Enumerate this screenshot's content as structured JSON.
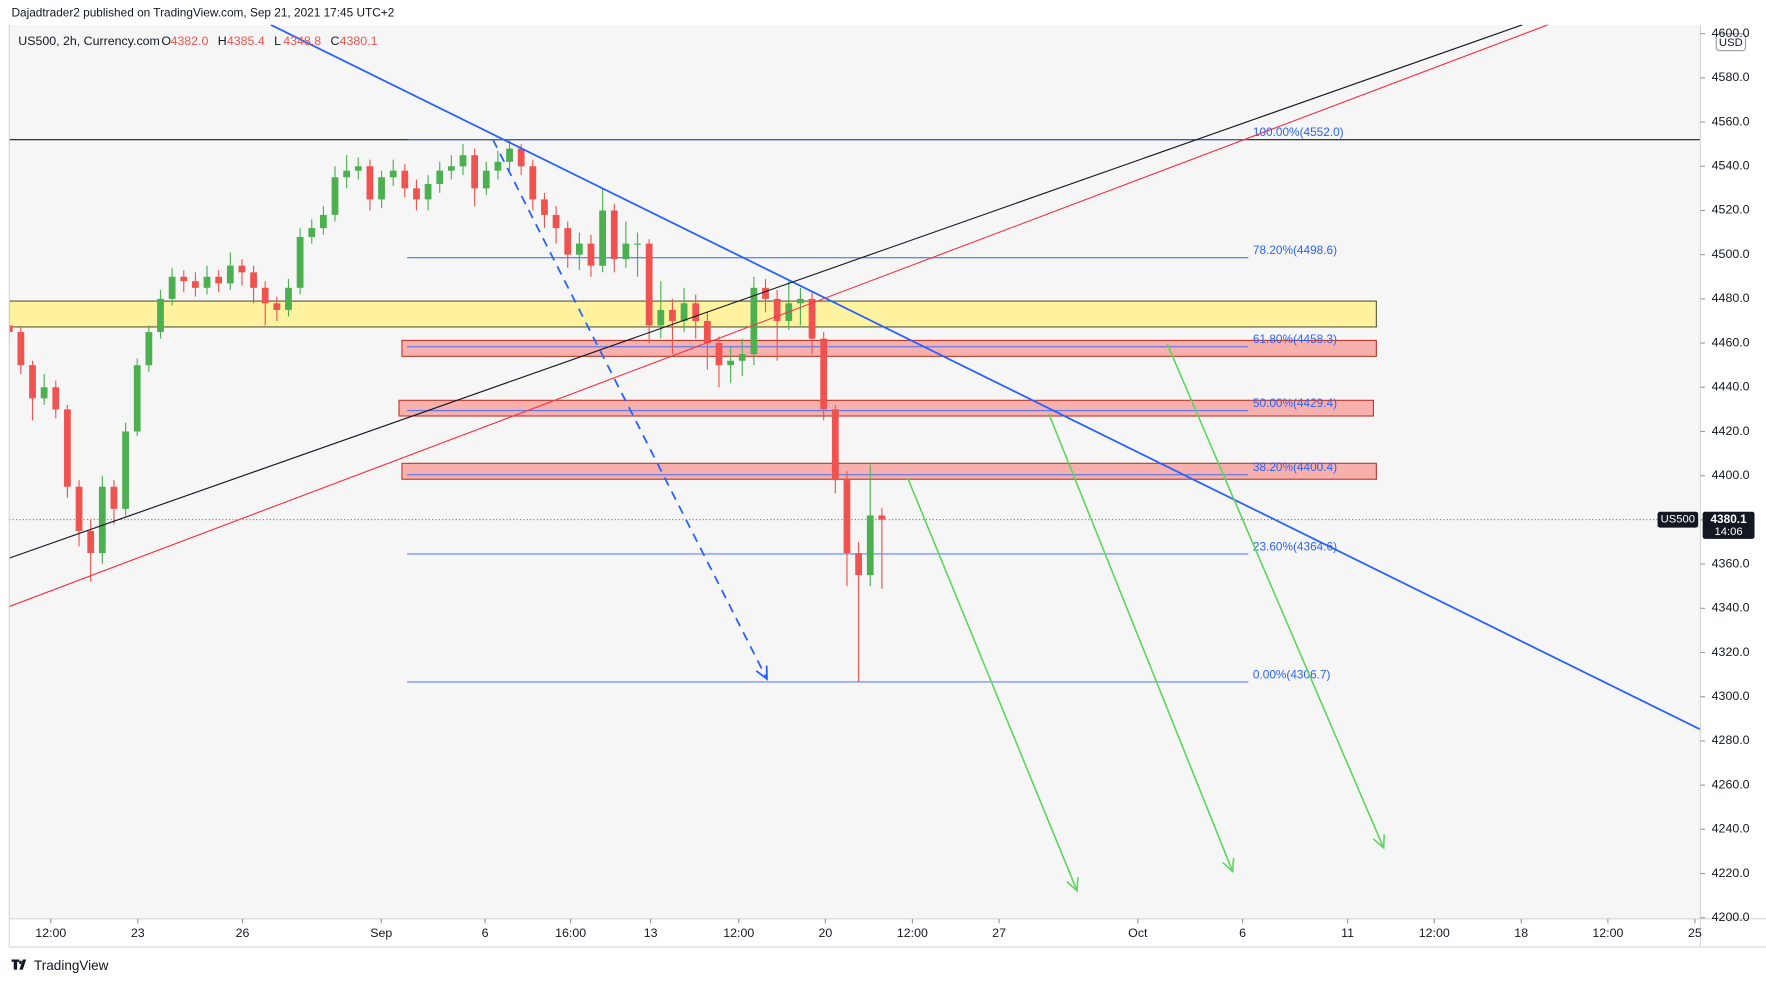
{
  "header": "Dajadtrader2 published on TradingView.com, Sep 21, 2021 17:45 UTC+2",
  "legend": {
    "symbol": "US500, 2h, Currency.com",
    "fields": [
      {
        "key": "O",
        "value": "4382.0"
      },
      {
        "key": "H",
        "value": "4385.4"
      },
      {
        "key": "L",
        "value": "4348.8"
      },
      {
        "key": "C",
        "value": "4380.1"
      }
    ]
  },
  "footer": "TradingView",
  "chart_data": {
    "type": "candlestick",
    "up_color": "#4caf50",
    "down_color": "#ef5350",
    "xlim": [
      0,
      581.4
    ],
    "ylim": [
      4200,
      4604
    ],
    "currency": "USD",
    "x": [
      0,
      4,
      8,
      12,
      16,
      20,
      24,
      28,
      32,
      36,
      40,
      44,
      48,
      52,
      56,
      60,
      64,
      68,
      72,
      76,
      80,
      84,
      88,
      92,
      96,
      100,
      104,
      108,
      112,
      116,
      120,
      124,
      128,
      132,
      136,
      140,
      144,
      148,
      152,
      156,
      160,
      164,
      168,
      172,
      176,
      180,
      184,
      188,
      192,
      196,
      200,
      204,
      208,
      212,
      216,
      220,
      224,
      228,
      232,
      236,
      240,
      244,
      248,
      252,
      256,
      260,
      264,
      268,
      272,
      276,
      280,
      284,
      288,
      292,
      296,
      300
    ],
    "open": [
      4468,
      4465,
      4450,
      4435,
      4440,
      4430,
      4395,
      4375,
      4365,
      4395,
      4385,
      4420,
      4450,
      4465,
      4480,
      4490,
      4488,
      4485,
      4490,
      4487,
      4495,
      4492,
      4485,
      4478,
      4475,
      4485,
      4508,
      4512,
      4518,
      4535,
      4538,
      4540,
      4525,
      4535,
      4538,
      4530,
      4525,
      4532,
      4538,
      4540,
      4545,
      4530,
      4538,
      4542,
      4548,
      4540,
      4525,
      4518,
      4512,
      4500,
      4505,
      4495,
      4520,
      4498,
      4505,
      4505,
      4468,
      4475,
      4470,
      4478,
      4470,
      4460,
      4450,
      4452,
      4455,
      4485,
      4480,
      4470,
      4478,
      4480,
      4462,
      4430,
      4398,
      4365,
      4355,
      4382
    ],
    "high": [
      4470,
      4467,
      4452,
      4446,
      4443,
      4432,
      4398,
      4380,
      4400,
      4398,
      4424,
      4453,
      4468,
      4484,
      4494,
      4493,
      4492,
      4495,
      4493,
      4501,
      4498,
      4495,
      4488,
      4481,
      4489,
      4512,
      4516,
      4522,
      4540,
      4545,
      4544,
      4543,
      4538,
      4543,
      4541,
      4534,
      4536,
      4542,
      4545,
      4550,
      4548,
      4542,
      4547,
      4552,
      4550,
      4543,
      4528,
      4522,
      4515,
      4510,
      4509,
      4530,
      4523,
      4515,
      4510,
      4507,
      4488,
      4480,
      4485,
      4482,
      4474,
      4463,
      4458,
      4462,
      4490,
      4489,
      4484,
      4488,
      4485,
      4483,
      4465,
      4432,
      4402,
      4370,
      4405,
      4385.4
    ],
    "low": [
      4460,
      4446,
      4425,
      4432,
      4426,
      4390,
      4368,
      4352,
      4360,
      4378,
      4382,
      4418,
      4447,
      4462,
      4477,
      4483,
      4481,
      4482,
      4483,
      4484,
      4486,
      4478,
      4468,
      4470,
      4472,
      4482,
      4505,
      4509,
      4515,
      4530,
      4534,
      4520,
      4521,
      4531,
      4526,
      4520,
      4520,
      4528,
      4534,
      4536,
      4522,
      4527,
      4534,
      4538,
      4536,
      4520,
      4512,
      4505,
      4494,
      4493,
      4490,
      4492,
      4492,
      4494,
      4490,
      4460,
      4462,
      4455,
      4465,
      4462,
      4448,
      4440,
      4442,
      4445,
      4450,
      4474,
      4452,
      4466,
      4468,
      4455,
      4425,
      4392,
      4350,
      4306.7,
      4350,
      4348.8
    ],
    "close": [
      4465,
      4450,
      4435,
      4440,
      4430,
      4395,
      4375,
      4365,
      4395,
      4385,
      4420,
      4450,
      4465,
      4480,
      4490,
      4488,
      4485,
      4490,
      4487,
      4495,
      4492,
      4485,
      4478,
      4475,
      4485,
      4508,
      4512,
      4518,
      4535,
      4538,
      4540,
      4525,
      4535,
      4538,
      4530,
      4525,
      4532,
      4538,
      4540,
      4545,
      4530,
      4538,
      4542,
      4548,
      4540,
      4525,
      4518,
      4512,
      4500,
      4505,
      4495,
      4520,
      4498,
      4505,
      4505,
      4468,
      4475,
      4470,
      4478,
      4470,
      4460,
      4450,
      4452,
      4455,
      4485,
      4480,
      4470,
      4478,
      4480,
      4462,
      4430,
      4398,
      4365,
      4355,
      4382,
      4380.1
    ],
    "yticks": [
      {
        "value": 4200,
        "label": "4200.0"
      },
      {
        "value": 4220,
        "label": "4220.0"
      },
      {
        "value": 4240,
        "label": "4240.0"
      },
      {
        "value": 4260,
        "label": "4260.0"
      },
      {
        "value": 4280,
        "label": "4280.0"
      },
      {
        "value": 4300,
        "label": "4300.0"
      },
      {
        "value": 4320,
        "label": "4320.0"
      },
      {
        "value": 4340,
        "label": "4340.0"
      },
      {
        "value": 4360,
        "label": "4360.0"
      },
      {
        "value": 4380,
        "label": "4380.0"
      },
      {
        "value": 4400,
        "label": "4400.0"
      },
      {
        "value": 4420,
        "label": "4420.0"
      },
      {
        "value": 4440,
        "label": "4440.0"
      },
      {
        "value": 4460,
        "label": "4460.0"
      },
      {
        "value": 4480,
        "label": "4480.0"
      },
      {
        "value": 4500,
        "label": "4500.0"
      },
      {
        "value": 4520,
        "label": "4520.0"
      },
      {
        "value": 4540,
        "label": "4540.0"
      },
      {
        "value": 4560,
        "label": "4560.0"
      },
      {
        "value": 4580,
        "label": "4580.0"
      },
      {
        "value": 4600,
        "label": "4600.0"
      }
    ],
    "xticks": [
      {
        "value": 14.3,
        "label": "12:00"
      },
      {
        "value": 44.2,
        "label": "23"
      },
      {
        "value": 80.2,
        "label": "26"
      },
      {
        "value": 127.9,
        "label": "Sep"
      },
      {
        "value": 163.6,
        "label": "6"
      },
      {
        "value": 193.0,
        "label": "16:00"
      },
      {
        "value": 220.5,
        "label": "13"
      },
      {
        "value": 250.8,
        "label": "12:00"
      },
      {
        "value": 280.6,
        "label": "20"
      },
      {
        "value": 310.5,
        "label": "12:00"
      },
      {
        "value": 340.3,
        "label": "27"
      },
      {
        "value": 388.0,
        "label": "Oct"
      },
      {
        "value": 424.0,
        "label": "6"
      },
      {
        "value": 460.1,
        "label": "11"
      },
      {
        "value": 489.9,
        "label": "12:00"
      },
      {
        "value": 519.8,
        "label": "18"
      },
      {
        "value": 549.6,
        "label": "12:00"
      },
      {
        "value": 579.5,
        "label": "25"
      }
    ],
    "last_price": {
      "value": 4380.1,
      "label": "4380.1",
      "symbol": "US500",
      "countdown": "14:06"
    },
    "hline": {
      "value": 4552,
      "color": "#131722"
    },
    "zones": [
      {
        "x": [
          0,
          470
        ],
        "y": [
          4467.3,
          4479
        ],
        "fill": "#fff3a0",
        "stroke": "#5a5a3a"
      },
      {
        "x": [
          135,
          470
        ],
        "y": [
          4454,
          4461.2
        ],
        "fill": "#f8b0ad",
        "stroke": "#c0392b"
      },
      {
        "x": [
          134,
          469
        ],
        "y": [
          4427,
          4434.1
        ],
        "fill": "#f8b0ad",
        "stroke": "#c0392b"
      },
      {
        "x": [
          135,
          470
        ],
        "y": [
          4398.4,
          4405.6
        ],
        "fill": "#f8b0ad",
        "stroke": "#c0392b"
      }
    ],
    "fib": {
      "x": [
        136.8,
        426
      ],
      "color": "#2962ff",
      "levels": [
        {
          "value": 4552.0,
          "label": "100.00%(4552.0)"
        },
        {
          "value": 4498.6,
          "label": "78.20%(4498.6)"
        },
        {
          "value": 4458.3,
          "label": "61.80%(4458.3)"
        },
        {
          "value": 4429.4,
          "label": "50.00%(4429.4)"
        },
        {
          "value": 4400.4,
          "label": "38.20%(4400.4)"
        },
        {
          "value": 4364.6,
          "label": "23.60%(4364.6)"
        },
        {
          "value": 4306.7,
          "label": "0.00%(4306.7)"
        }
      ]
    },
    "lines": [
      {
        "x": [
          89.9,
          581.4
        ],
        "y": [
          4604,
          4285.2
        ],
        "color": "#2962ff",
        "width": 1.6,
        "dashed": false,
        "arrow": false
      },
      {
        "x": [
          0,
          520.2
        ],
        "y": [
          4362.7,
          4604
        ],
        "color": "#131722",
        "width": 1,
        "dashed": false,
        "arrow": false
      },
      {
        "x": [
          0,
          529
        ],
        "y": [
          4340.8,
          4604
        ],
        "color": "#f23645",
        "width": 1,
        "dashed": false,
        "arrow": false
      },
      {
        "x": [
          166.3,
          260.5
        ],
        "y": [
          4552,
          4308
        ],
        "color": "#2962ff",
        "width": 1.6,
        "dashed": true,
        "arrow": true
      },
      {
        "x": [
          308.9,
          367.1
        ],
        "y": [
          4398.9,
          4212.2
        ],
        "color": "#5ad65a",
        "width": 1.4,
        "dashed": false,
        "arrow": true
      },
      {
        "x": [
          357.4,
          420.6
        ],
        "y": [
          4428,
          4220.9
        ],
        "color": "#5ad65a",
        "width": 1.4,
        "dashed": false,
        "arrow": true
      },
      {
        "x": [
          398.1,
          472.5
        ],
        "y": [
          4459.6,
          4231.6
        ],
        "color": "#5ad65a",
        "width": 1.4,
        "dashed": false,
        "arrow": true
      }
    ]
  }
}
